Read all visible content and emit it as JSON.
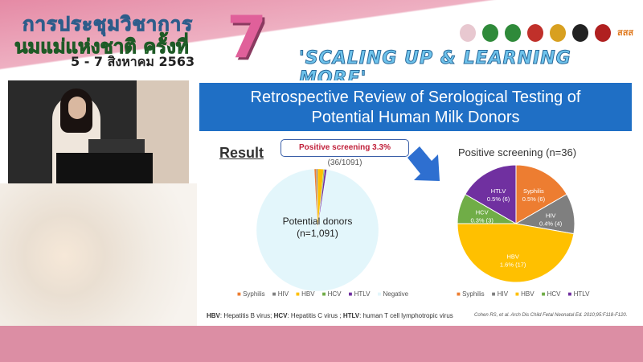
{
  "banner": {
    "line1": "การประชุมวิชาการ",
    "line2": "นมแม่แห่งชาติ ครั้งที่",
    "dates": "5 - 7 สิงหาคม 2563",
    "number": "7",
    "tagline": "'SCALING UP & LEARNING MORE'",
    "logos": [
      "logo-1",
      "logo-2",
      "logo-3",
      "logo-4",
      "logo-5",
      "logo-6",
      "logo-7",
      "logo-sss"
    ],
    "logo_text": "สสส"
  },
  "slide": {
    "title_line1": "Retrospective Review of Serological Testing of",
    "title_line2": "Potential Human Milk Donors",
    "result_label": "Result",
    "callout_bold": "Positive screening 3.3%",
    "callout_rest": " (36/1091)",
    "left_center_line1": "Potential donors",
    "left_center_line2": "(n=1,091)",
    "footnote_parts": [
      "HBV",
      ": Hepatitis B virus; ",
      "HCV",
      ": Hepatitis C virus ; ",
      "HTLV",
      ": human T cell lymphotropic virus"
    ],
    "citation": "Cohen RS, et al. Arch Dis Child Fetal Neonatal Ed. 2010;95:F118-F120."
  },
  "chart_data": [
    {
      "type": "pie",
      "title": "",
      "center_label": "Potential donors (n=1,091)",
      "categories": [
        "Syphilis",
        "HIV",
        "HBV",
        "HCV",
        "HTLV",
        "Negative"
      ],
      "values": [
        6,
        4,
        17,
        3,
        6,
        1055
      ],
      "colors": [
        "#ed7d31",
        "#7f7f7f",
        "#ffc000",
        "#70ad47",
        "#7030a0",
        "#e3f6fb"
      ],
      "legend": "bottom"
    },
    {
      "type": "pie",
      "title": "Positive screening (n=36)",
      "categories": [
        "Syphilis",
        "HIV",
        "HBV",
        "HCV",
        "HTLV"
      ],
      "values": [
        6,
        4,
        17,
        3,
        6
      ],
      "data_labels": [
        "0.5% (6)",
        "0.4% (4)",
        "1.6% (17)",
        "0.3% (3)",
        "0.5% (6)"
      ],
      "colors": [
        "#ed7d31",
        "#7f7f7f",
        "#ffc000",
        "#70ad47",
        "#7030a0"
      ],
      "legend": "bottom"
    }
  ]
}
